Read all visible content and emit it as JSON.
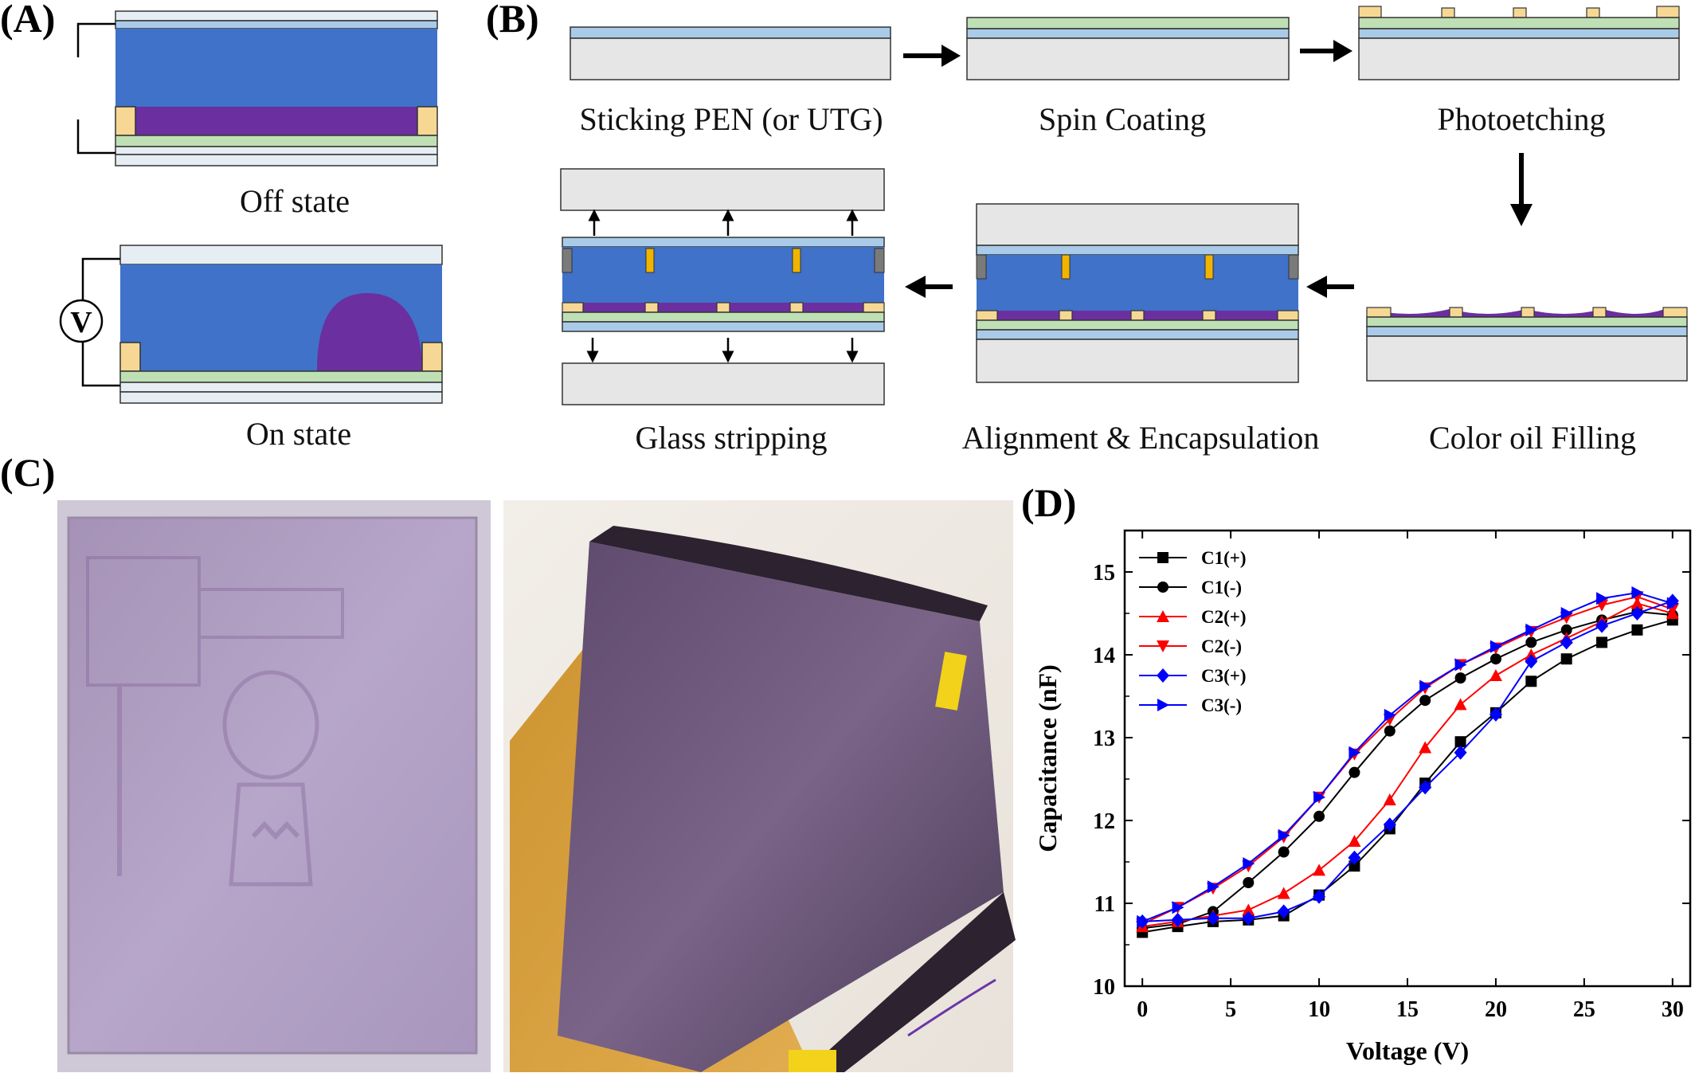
{
  "panels": {
    "a": "(A)",
    "b": "(B)",
    "c": "(C)",
    "d": "(D)"
  },
  "panel_a": {
    "off_label": "Off state",
    "on_label": "On state",
    "voltage_symbol": "V"
  },
  "panel_b": {
    "steps": [
      "Sticking PEN (or UTG)",
      "Spin Coating",
      "Photoetching",
      "Color oil Filling",
      "Alignment & Encapsulation",
      "Glass stripping"
    ]
  },
  "panel_c": {
    "left_photo": "flat electrowetting display photo",
    "right_photo": "curved flexible display photo"
  },
  "colors": {
    "oil": "#6b2fa0",
    "water": "#3f72c8",
    "pixel_wall": "#f6d894",
    "dielectric": "#bfe0b4",
    "electrode": "#a9cbe8",
    "glass": "#e6e6e6",
    "wall_dark": "#7a7a7a",
    "spacer": "#f0b400"
  },
  "chart_data": {
    "type": "line",
    "title": "",
    "xlabel": "Voltage (V)",
    "ylabel": "Capacitance (nF)",
    "xlim": [
      -1,
      31
    ],
    "ylim": [
      10,
      15.5
    ],
    "xticks": [
      0,
      5,
      10,
      15,
      20,
      25,
      30
    ],
    "yticks": [
      10,
      11,
      12,
      13,
      14,
      15
    ],
    "legend_position": "top-left",
    "x": [
      0,
      2,
      4,
      6,
      8,
      10,
      12,
      14,
      16,
      18,
      20,
      22,
      24,
      26,
      28,
      30
    ],
    "series": [
      {
        "name": "C1(+)",
        "color": "#000000",
        "marker": "square",
        "values": [
          10.65,
          10.72,
          10.78,
          10.8,
          10.85,
          11.1,
          11.45,
          11.9,
          12.45,
          12.95,
          13.3,
          13.68,
          13.95,
          14.15,
          14.3,
          14.42
        ]
      },
      {
        "name": "C1(-)",
        "color": "#000000",
        "marker": "circle",
        "values": [
          10.7,
          10.75,
          10.9,
          11.25,
          11.62,
          12.05,
          12.58,
          13.08,
          13.45,
          13.72,
          13.95,
          14.15,
          14.3,
          14.42,
          14.52,
          14.48
        ]
      },
      {
        "name": "C2(+)",
        "color": "#ff0000",
        "marker": "triangle-up",
        "values": [
          10.72,
          10.78,
          10.85,
          10.92,
          11.12,
          11.4,
          11.75,
          12.25,
          12.88,
          13.4,
          13.75,
          14.0,
          14.2,
          14.4,
          14.62,
          14.5
        ]
      },
      {
        "name": "C2(-)",
        "color": "#ff0000",
        "marker": "triangle-down",
        "values": [
          10.75,
          10.95,
          11.18,
          11.45,
          11.8,
          12.28,
          12.8,
          13.22,
          13.6,
          13.88,
          14.08,
          14.28,
          14.45,
          14.6,
          14.7,
          14.55
        ]
      },
      {
        "name": "C3(+)",
        "color": "#0000ff",
        "marker": "diamond",
        "values": [
          10.78,
          10.8,
          10.82,
          10.82,
          10.9,
          11.08,
          11.55,
          11.95,
          12.4,
          12.82,
          13.28,
          13.92,
          14.15,
          14.35,
          14.5,
          14.65
        ]
      },
      {
        "name": "C3(-)",
        "color": "#0000ff",
        "marker": "triangle-right",
        "values": [
          10.78,
          10.95,
          11.2,
          11.48,
          11.82,
          12.28,
          12.82,
          13.27,
          13.62,
          13.88,
          14.1,
          14.3,
          14.5,
          14.68,
          14.75,
          14.62
        ]
      }
    ]
  }
}
